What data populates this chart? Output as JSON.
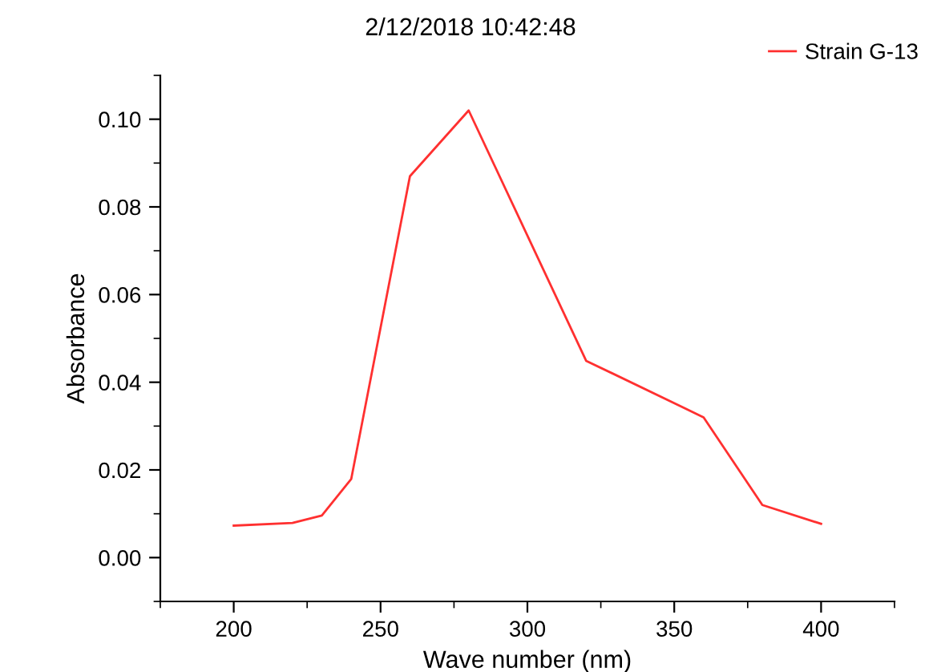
{
  "chart_data": {
    "type": "line",
    "title": "2/12/2018 10:42:48",
    "xlabel": "Wave number (nm)",
    "ylabel": "Absorbance",
    "x": [
      200,
      220,
      230,
      240,
      260,
      280,
      320,
      360,
      380,
      400
    ],
    "series": [
      {
        "name": "Strain G-13",
        "color": "#ff3030",
        "values": [
          0.0073,
          0.0079,
          0.0096,
          0.0179,
          0.087,
          0.102,
          0.0449,
          0.032,
          0.012,
          0.0077
        ]
      }
    ],
    "xlim": [
      175,
      425
    ],
    "xticks": [
      200,
      250,
      300,
      350,
      400
    ],
    "ylim": [
      -0.01,
      0.11
    ],
    "yticks": [
      {
        "value": 0,
        "label": "0.00"
      },
      {
        "value": 0.02,
        "label": "0.02"
      },
      {
        "value": 0.04,
        "label": "0.04"
      },
      {
        "value": 0.06,
        "label": "0.06"
      },
      {
        "value": 0.08,
        "label": "0.08"
      },
      {
        "value": 0.1,
        "label": "0.10"
      }
    ],
    "grid": false,
    "legend": "top right",
    "marker": "none",
    "line_style": "solid"
  }
}
